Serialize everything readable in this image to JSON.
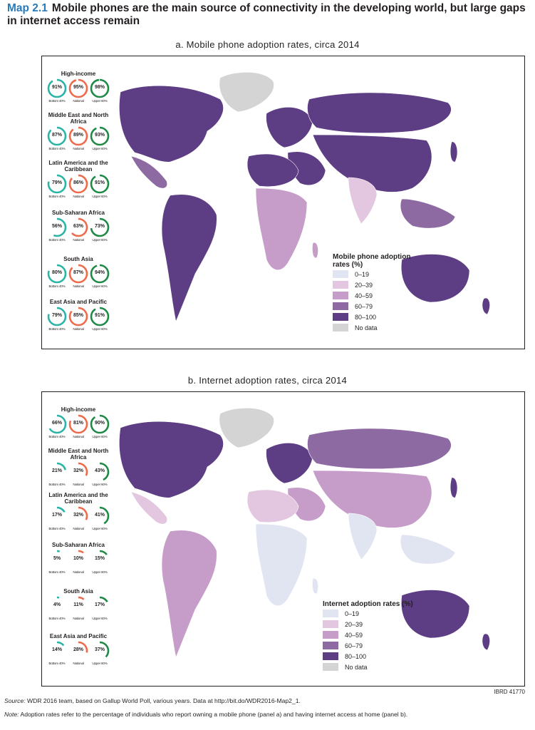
{
  "header": {
    "label": "Map 2.1",
    "title": "Mobile phones are the main source of connectivity in the developing world, but large gaps in internet access remain"
  },
  "colors": {
    "ring_bottom": "#2ab4a6",
    "ring_national": "#ee6a4b",
    "ring_upper": "#1e8a45",
    "class_0_19": "#e1e4f1",
    "class_20_39": "#e3c6df",
    "class_40_59": "#c69cc9",
    "class_60_79": "#8e6aa3",
    "class_80_100": "#5d3d83",
    "no_data": "#d4d4d4"
  },
  "group_labels": {
    "bottom": "Bottom 40%",
    "national": "National",
    "upper": "Upper 60%"
  },
  "legend_classes": [
    {
      "label": "0–19",
      "color": "#e1e4f1"
    },
    {
      "label": "20–39",
      "color": "#e3c6df"
    },
    {
      "label": "40–59",
      "color": "#c69cc9"
    },
    {
      "label": "60–79",
      "color": "#8e6aa3"
    },
    {
      "label": "80–100",
      "color": "#5d3d83"
    },
    {
      "label": "No data",
      "color": "#d4d4d4"
    }
  ],
  "panel_a": {
    "title": "a. Mobile phone adoption rates, circa 2014",
    "legend_title": "Mobile phone adoption rates (%)",
    "regions": [
      {
        "name": "High-income",
        "bottom": "91%",
        "national": "95%",
        "upper": "98%",
        "values": [
          91,
          95,
          98
        ]
      },
      {
        "name": "Middle East and North Africa",
        "bottom": "87%",
        "national": "89%",
        "upper": "93%",
        "values": [
          87,
          89,
          93
        ]
      },
      {
        "name": "Latin America and the Caribbean",
        "bottom": "79%",
        "national": "86%",
        "upper": "91%",
        "values": [
          79,
          86,
          91
        ]
      },
      {
        "name": "Sub-Saharan Africa",
        "bottom": "56%",
        "national": "63%",
        "upper": "73%",
        "values": [
          56,
          63,
          73
        ]
      },
      {
        "name": "South Asia",
        "bottom": "80%",
        "national": "87%",
        "upper": "94%",
        "values": [
          80,
          87,
          94
        ]
      },
      {
        "name": "East Asia and Pacific",
        "bottom": "79%",
        "national": "85%",
        "upper": "91%",
        "values": [
          79,
          85,
          91
        ]
      }
    ]
  },
  "panel_b": {
    "title": "b. Internet adoption rates, circa 2014",
    "legend_title": "Internet adoption rates (%)",
    "regions": [
      {
        "name": "High-income",
        "bottom": "66%",
        "national": "81%",
        "upper": "90%",
        "values": [
          66,
          81,
          90
        ]
      },
      {
        "name": "Middle East and North Africa",
        "bottom": "21%",
        "national": "32%",
        "upper": "43%",
        "values": [
          21,
          32,
          43
        ]
      },
      {
        "name": "Latin America and the Caribbean",
        "bottom": "17%",
        "national": "32%",
        "upper": "41%",
        "values": [
          17,
          32,
          41
        ]
      },
      {
        "name": "Sub-Saharan Africa",
        "bottom": "5%",
        "national": "10%",
        "upper": "15%",
        "values": [
          5,
          10,
          15
        ]
      },
      {
        "name": "South Asia",
        "bottom": "4%",
        "national": "11%",
        "upper": "17%",
        "values": [
          4,
          11,
          17
        ]
      },
      {
        "name": "East Asia and Pacific",
        "bottom": "14%",
        "national": "28%",
        "upper": "37%",
        "values": [
          14,
          28,
          37
        ]
      }
    ]
  },
  "footer": {
    "ibrd": "IBRD 41770",
    "source_label": "Source:",
    "source_text": "WDR 2016 team, based on Gallup World Poll, various years. Data at http://bit.do/WDR2016-Map2_1.",
    "note_label": "Note:",
    "note_text": "Adoption rates refer to the percentage of individuals who report owning a mobile phone (panel a) and having internet access at home (panel b)."
  }
}
